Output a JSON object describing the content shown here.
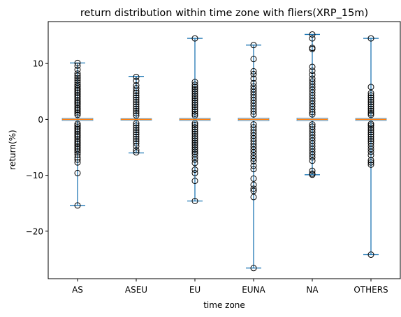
{
  "chart_data": {
    "type": "boxplot",
    "title": "return distribution within time zone with fliers(XRP_15m)",
    "xlabel": "time zone",
    "ylabel": "return(%)",
    "ylim": [
      -28.5,
      17.5
    ],
    "yticks": [
      10,
      0,
      -10,
      -20
    ],
    "ytick_labels": [
      "10",
      "0",
      "−10",
      "−20"
    ],
    "grid": false,
    "colors": {
      "whisker": "#1f77b4",
      "median": "#ff7f0e",
      "box": "#1f77b4",
      "flier_edge": "#000000",
      "flier_fill": "none",
      "axis": "#000000"
    },
    "categories": [
      "AS",
      "ASEU",
      "EU",
      "EUNA",
      "NA",
      "OTHERS"
    ],
    "series": [
      {
        "category": "AS",
        "median": 0.0,
        "q1": -0.2,
        "q3": 0.2,
        "whisker_low": -15.4,
        "whisker_high": 10.1,
        "fliers": [
          10.1,
          9.6,
          8.9,
          8.2,
          7.8,
          7.4,
          7.0,
          6.6,
          6.2,
          5.9,
          5.6,
          5.3,
          5.0,
          4.7,
          4.4,
          4.1,
          3.8,
          3.5,
          3.2,
          2.9,
          2.6,
          2.3,
          2.0,
          1.7,
          1.4,
          1.1,
          0.8,
          -0.8,
          -1.1,
          -1.4,
          -1.7,
          -2.0,
          -2.3,
          -2.6,
          -2.9,
          -3.2,
          -3.5,
          -3.8,
          -4.1,
          -4.4,
          -4.7,
          -5.0,
          -5.3,
          -5.6,
          -5.9,
          -6.3,
          -6.8,
          -7.2,
          -7.7,
          -9.6,
          -15.4
        ]
      },
      {
        "category": "ASEU",
        "median": 0.0,
        "q1": -0.15,
        "q3": 0.15,
        "whisker_low": -6.0,
        "whisker_high": 7.7,
        "fliers": [
          7.6,
          6.9,
          6.1,
          5.6,
          5.1,
          4.7,
          4.3,
          3.9,
          3.5,
          3.1,
          2.7,
          2.3,
          1.9,
          1.5,
          1.1,
          0.7,
          -0.7,
          -1.1,
          -1.5,
          -1.9,
          -2.3,
          -2.7,
          -3.1,
          -3.5,
          -3.9,
          -4.3,
          -4.8,
          -5.5,
          -5.9
        ]
      },
      {
        "category": "EU",
        "median": 0.0,
        "q1": -0.2,
        "q3": 0.2,
        "whisker_low": -14.6,
        "whisker_high": 14.5,
        "fliers": [
          14.5,
          6.7,
          6.2,
          5.8,
          5.4,
          5.0,
          4.6,
          4.2,
          3.8,
          3.4,
          3.0,
          2.6,
          2.2,
          1.8,
          1.4,
          1.0,
          0.7,
          -0.7,
          -1.0,
          -1.4,
          -1.8,
          -2.2,
          -2.6,
          -3.0,
          -3.4,
          -3.8,
          -4.2,
          -4.6,
          -5.0,
          -5.4,
          -5.8,
          -6.2,
          -6.7,
          -7.2,
          -7.8,
          -9.0,
          -9.6,
          -11.0,
          -14.6
        ]
      },
      {
        "category": "EUNA",
        "median": 0.0,
        "q1": -0.25,
        "q3": 0.25,
        "whisker_low": -26.6,
        "whisker_high": 13.3,
        "fliers": [
          13.3,
          10.8,
          8.6,
          8.1,
          7.3,
          6.5,
          5.9,
          5.4,
          4.9,
          4.4,
          3.9,
          3.4,
          2.9,
          2.4,
          1.9,
          1.4,
          0.9,
          -0.9,
          -1.4,
          -1.9,
          -2.4,
          -2.9,
          -3.4,
          -3.9,
          -4.4,
          -4.9,
          -5.4,
          -5.9,
          -6.5,
          -7.0,
          -7.5,
          -8.3,
          -8.9,
          -10.6,
          -11.7,
          -12.4,
          -12.8,
          -13.9,
          -26.6
        ]
      },
      {
        "category": "NA",
        "median": 0.0,
        "q1": -0.25,
        "q3": 0.25,
        "whisker_low": -9.9,
        "whisker_high": 15.2,
        "fliers": [
          15.2,
          14.5,
          12.8,
          12.6,
          9.4,
          8.7,
          8.0,
          7.3,
          6.8,
          6.3,
          5.8,
          5.3,
          4.8,
          4.3,
          3.8,
          3.3,
          2.8,
          2.3,
          1.8,
          1.3,
          0.9,
          -0.9,
          -1.3,
          -1.8,
          -2.3,
          -2.8,
          -3.3,
          -3.8,
          -4.3,
          -4.8,
          -5.3,
          -5.8,
          -6.3,
          -6.8,
          -7.4,
          -9.2,
          -9.7,
          -9.9
        ]
      },
      {
        "category": "OTHERS",
        "median": 0.0,
        "q1": -0.2,
        "q3": 0.2,
        "whisker_low": -24.2,
        "whisker_high": 14.5,
        "fliers": [
          14.5,
          5.8,
          4.7,
          4.3,
          3.9,
          3.5,
          3.1,
          2.7,
          2.3,
          1.9,
          1.5,
          1.1,
          0.8,
          -0.8,
          -1.1,
          -1.5,
          -1.9,
          -2.3,
          -2.7,
          -3.1,
          -3.5,
          -3.9,
          -4.3,
          -4.8,
          -5.3,
          -5.8,
          -6.4,
          -7.3,
          -7.7,
          -8.1,
          -24.2
        ]
      }
    ]
  }
}
